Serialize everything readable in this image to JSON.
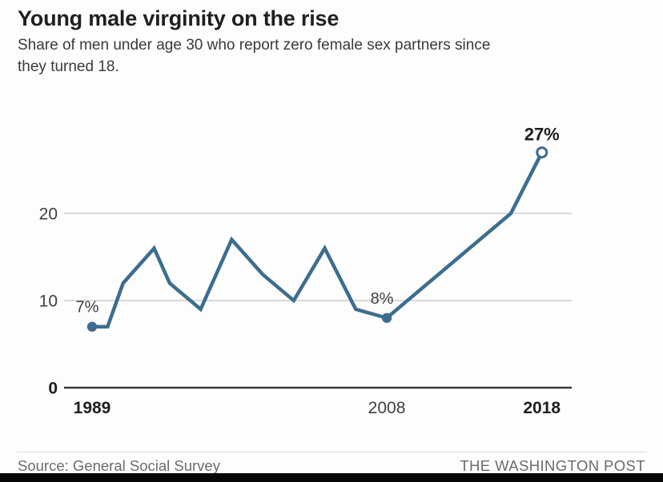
{
  "header": {
    "title": "Young male virginity on the rise",
    "subtitle": "Share of men under age 30 who report zero female sex partners since they turned 18."
  },
  "chart_data": {
    "type": "line",
    "title": "Young male virginity on the rise",
    "xlabel": "",
    "ylabel": "",
    "x": [
      1989,
      1990,
      1991,
      1993,
      1994,
      1996,
      1998,
      2000,
      2002,
      2004,
      2006,
      2008,
      2016,
      2018
    ],
    "values": [
      7,
      7,
      12,
      16,
      12,
      9,
      17,
      13,
      10,
      16,
      9,
      8,
      20,
      27
    ],
    "xlim": [
      1987,
      2020
    ],
    "ylim": [
      0,
      30
    ],
    "grid": "horizontal-only",
    "legend": "none",
    "line_color": "#3d6d8e",
    "yticks": [
      {
        "value": 0,
        "label": "0",
        "bold": true
      },
      {
        "value": 10,
        "label": "10",
        "bold": false
      },
      {
        "value": 20,
        "label": "20",
        "bold": false
      }
    ],
    "xticks": [
      {
        "value": 1989,
        "label": "1989",
        "bold": true
      },
      {
        "value": 2008,
        "label": "2008",
        "bold": false
      },
      {
        "value": 2018,
        "label": "2018",
        "bold": true
      }
    ],
    "annotations": [
      {
        "x": 1989,
        "y": 7,
        "label": "7%",
        "bold": false,
        "marker": "filled"
      },
      {
        "x": 2008,
        "y": 8,
        "label": "8%",
        "bold": false,
        "marker": "filled"
      },
      {
        "x": 2018,
        "y": 27,
        "label": "27%",
        "bold": true,
        "marker": "open"
      }
    ]
  },
  "footer": {
    "source": "Source: General Social Survey",
    "brand": "THE WASHINGTON POST"
  }
}
